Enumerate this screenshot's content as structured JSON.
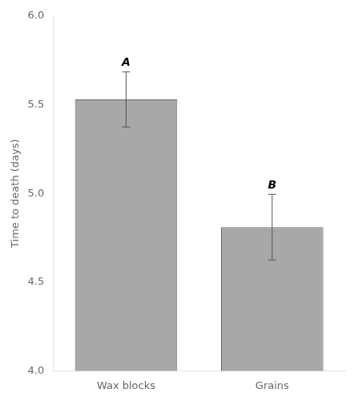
{
  "chart_data": {
    "type": "bar",
    "categories": [
      "Wax blocks",
      "Grains"
    ],
    "values": [
      5.53,
      4.81
    ],
    "errors": [
      0.155,
      0.185
    ],
    "letters": [
      "A",
      "B"
    ],
    "color": "#a8a8a8",
    "ylabel": "Time to death (days)",
    "ylim": [
      4.0,
      6.0
    ],
    "yticks": [
      {
        "value": 4.0,
        "label": "4.0"
      },
      4.5,
      {
        "value": 5.0,
        "label": "5.0"
      },
      5.5,
      {
        "value": 6.0,
        "label": "6.0"
      }
    ],
    "grid": false
  }
}
